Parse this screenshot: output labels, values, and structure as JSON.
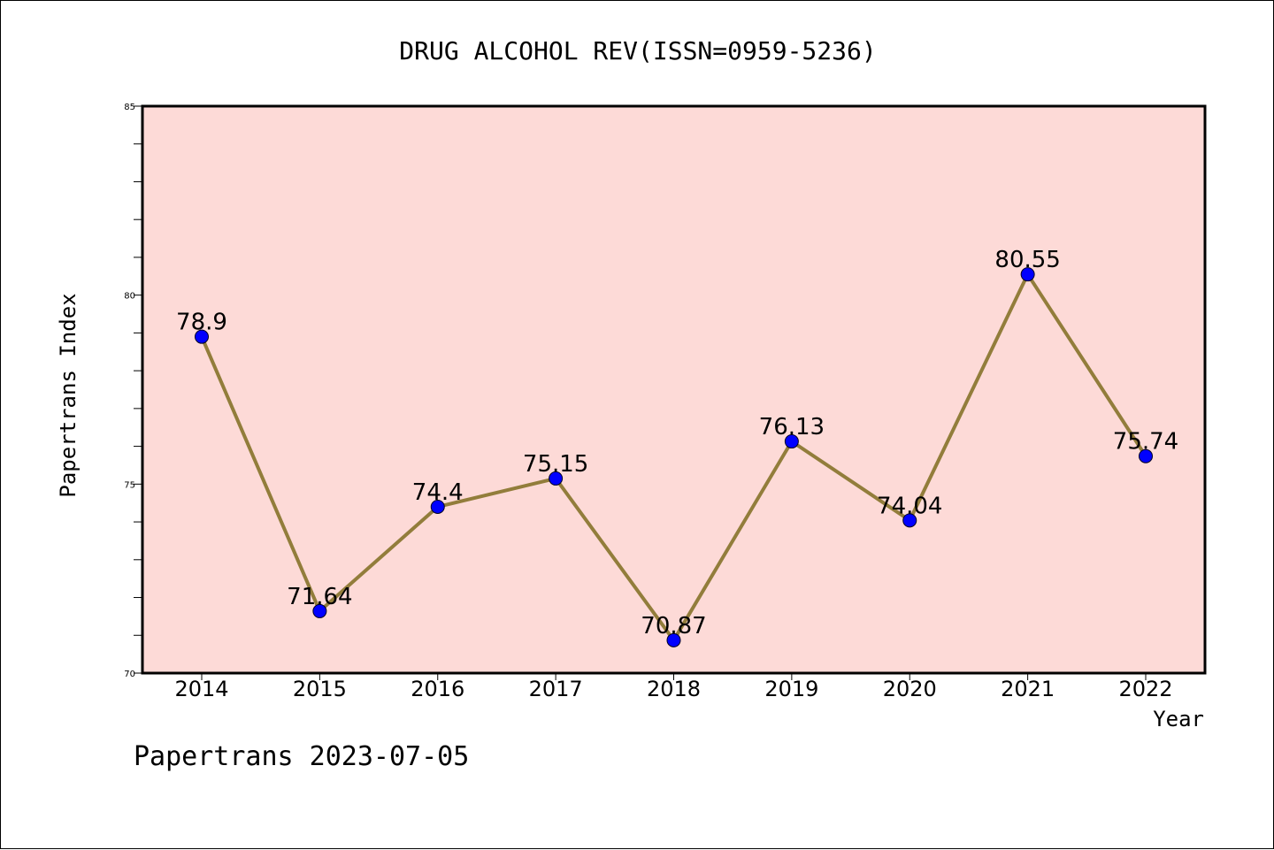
{
  "chart_data": {
    "type": "line",
    "title": "DRUG ALCOHOL REV(ISSN=0959-5236)",
    "xlabel": "Year",
    "ylabel": "Papertrans Index",
    "categories": [
      "2014",
      "2015",
      "2016",
      "2017",
      "2018",
      "2019",
      "2020",
      "2021",
      "2022"
    ],
    "series": [
      {
        "values": [
          78.9,
          71.64,
          74.4,
          75.15,
          70.87,
          76.13,
          74.04,
          80.55,
          75.74
        ],
        "labels": [
          "78.9",
          "71.64",
          "74.4",
          "75.15",
          "70.87",
          "76.13",
          "74.04",
          "80.55",
          "75.74"
        ]
      }
    ],
    "ylim": [
      70,
      85
    ],
    "yticks": [
      "70",
      "75",
      "80",
      "85"
    ],
    "grid": false,
    "colors": {
      "plot_background": "#fddad7",
      "line": "#927d3b",
      "marker": "#0000ff"
    }
  },
  "footer": "Papertrans 2023-07-05"
}
